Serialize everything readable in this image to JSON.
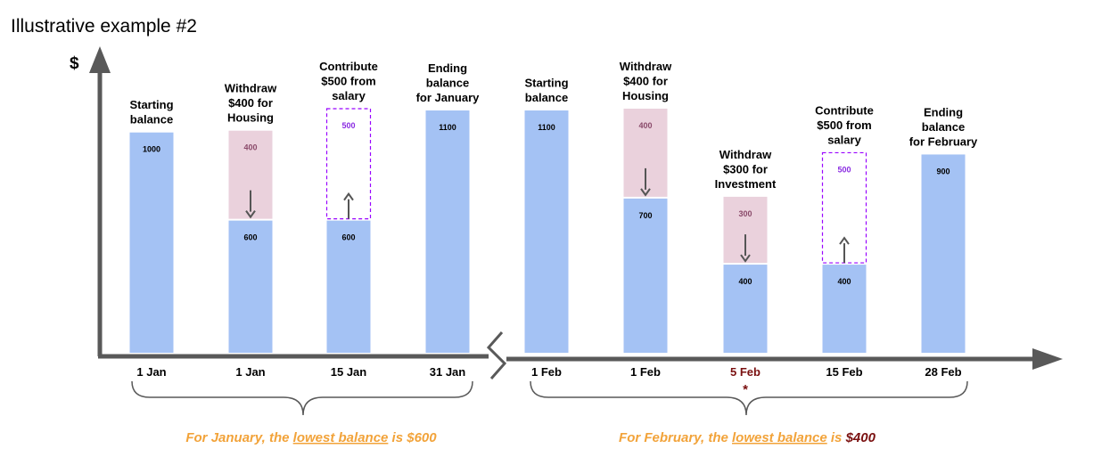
{
  "title": "Illustrative example #2",
  "y_axis_label": "$",
  "colors": {
    "balance_bar": "#a4c2f4",
    "withdraw_box": "#ead1dc",
    "contribute_border": "#9900ff",
    "axis": "#595959",
    "summary_text": "#f2a33a",
    "highlight": "#7a1010"
  },
  "steps": [
    {
      "label": [
        "Starting",
        "balance"
      ],
      "date": "1 Jan",
      "balance": 1000,
      "balance_label": "1000"
    },
    {
      "label": [
        "Withdraw",
        "$400 for",
        "Housing"
      ],
      "date": "1 Jan",
      "balance": 600,
      "balance_label": "600",
      "change_type": "withdraw",
      "change": 400,
      "change_label": "400"
    },
    {
      "label": [
        "Contribute",
        "$500 from",
        "salary"
      ],
      "date": "15 Jan",
      "balance": 600,
      "balance_label": "600",
      "change_type": "contribute",
      "change": 500,
      "change_label": "500"
    },
    {
      "label": [
        "Ending",
        "balance",
        "for January"
      ],
      "date": "31 Jan",
      "balance": 1100,
      "balance_label": "1100"
    },
    {
      "label": [
        "Starting",
        "balance"
      ],
      "date": "1 Feb",
      "balance": 1100,
      "balance_label": "1100"
    },
    {
      "label": [
        "Withdraw",
        "$400 for",
        "Housing"
      ],
      "date": "1 Feb",
      "balance": 700,
      "balance_label": "700",
      "change_type": "withdraw",
      "change": 400,
      "change_label": "400"
    },
    {
      "label": [
        "Withdraw",
        "$300 for",
        "Investment"
      ],
      "date": "5 Feb",
      "date_highlight": true,
      "marker": "*",
      "balance": 400,
      "balance_label": "400",
      "change_type": "withdraw",
      "change": 300,
      "change_label": "300"
    },
    {
      "label": [
        "Contribute",
        "$500 from",
        "salary"
      ],
      "date": "15 Feb",
      "balance": 400,
      "balance_label": "400",
      "change_type": "contribute",
      "change": 500,
      "change_label": "500"
    },
    {
      "label": [
        "Ending",
        "balance",
        "for February"
      ],
      "date": "28 Feb",
      "balance": 900,
      "balance_label": "900"
    }
  ],
  "summaries": {
    "january": {
      "prefix": "For January, the ",
      "emph": "lowest balance",
      "mid": " is ",
      "value": "$600"
    },
    "february": {
      "prefix": "For February, the ",
      "emph": "lowest balance",
      "mid": " is ",
      "value": "$400"
    }
  }
}
